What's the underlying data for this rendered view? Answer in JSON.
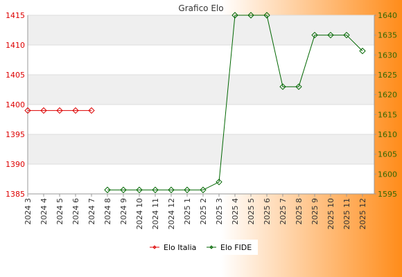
{
  "chart_data": {
    "type": "line",
    "title": "Grafico Elo",
    "categories": [
      "2024 3",
      "2024 4",
      "2024 5",
      "2024 6",
      "2024 7",
      "2024 8",
      "2024 9",
      "2024 10",
      "2024 11",
      "2024 12",
      "2025 1",
      "2025 2",
      "2025 3",
      "2025 4",
      "2025 5",
      "2025 6",
      "2025 7",
      "2025 8",
      "2025 9",
      "2025 10",
      "2025 11",
      "2025 12"
    ],
    "left_axis": {
      "min": 1385,
      "max": 1415,
      "ticks": [
        1385,
        1390,
        1395,
        1400,
        1405,
        1410,
        1415
      ],
      "color": "#dd0000"
    },
    "right_axis": {
      "min": 1595,
      "max": 1640,
      "ticks": [
        1595,
        1600,
        1605,
        1610,
        1615,
        1620,
        1625,
        1630,
        1635,
        1640
      ],
      "color": "#336600"
    },
    "grid": true,
    "legend_position": "bottom",
    "series": [
      {
        "name": "Elo Italia",
        "axis": "left",
        "color": "#dd0000",
        "values": [
          1399,
          1399,
          1399,
          1399,
          1399,
          null,
          null,
          null,
          null,
          null,
          null,
          null,
          null,
          null,
          null,
          null,
          null,
          null,
          null,
          null,
          null,
          null
        ]
      },
      {
        "name": "Elo FIDE",
        "axis": "right",
        "color": "#006600",
        "values": [
          null,
          null,
          null,
          null,
          null,
          1596,
          1596,
          1596,
          1596,
          1596,
          1596,
          1596,
          1598,
          1640,
          1640,
          1640,
          1622,
          1622,
          1635,
          1635,
          1635,
          1631
        ]
      }
    ]
  }
}
